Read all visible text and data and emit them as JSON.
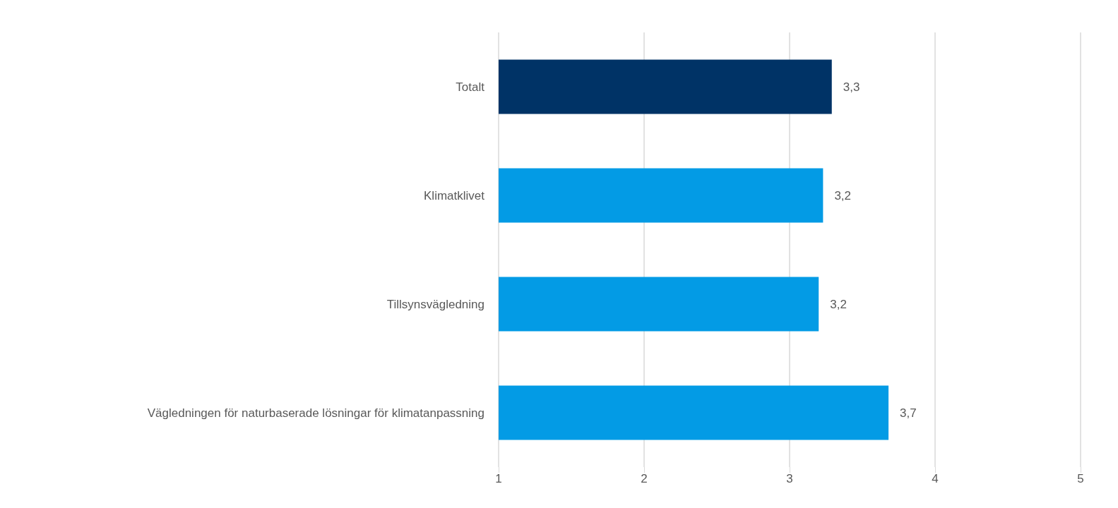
{
  "chart_data": {
    "type": "bar",
    "orientation": "horizontal",
    "categories": [
      "Totalt",
      "Klimatklivet",
      "Tillsynsvägledning",
      "Vägledningen för naturbaserade lösningar för klimatanpassning"
    ],
    "values": [
      3.29,
      3.23,
      3.2,
      3.68
    ],
    "colors": [
      "#003366",
      "#039be5",
      "#039be5",
      "#039be5"
    ],
    "value_labels": [
      "3,3",
      "3,2",
      "3,2",
      "3,7"
    ],
    "xlim": [
      1,
      5
    ],
    "xticks": [
      1,
      2,
      3,
      4,
      5
    ],
    "grid": "x"
  }
}
